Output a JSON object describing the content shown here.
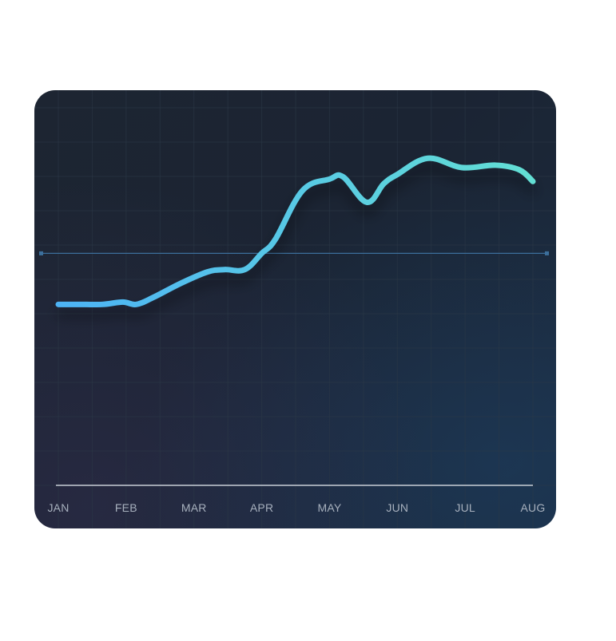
{
  "chart_data": {
    "type": "line",
    "categories": [
      "JAN",
      "FEB",
      "MAR",
      "APR",
      "MAY",
      "JUN",
      "JUL",
      "AUG"
    ],
    "x": [
      0,
      0.3,
      0.65,
      0.95,
      1.15,
      1.4,
      1.8,
      2.2,
      2.45,
      2.75,
      3.0,
      3.2,
      3.6,
      4.0,
      4.2,
      4.55,
      4.8,
      5.0,
      5.45,
      5.95,
      6.45,
      6.8,
      7.0
    ],
    "values": [
      0.78,
      0.78,
      0.78,
      0.79,
      0.78,
      0.81,
      0.87,
      0.92,
      0.93,
      0.93,
      1.0,
      1.06,
      1.27,
      1.32,
      1.33,
      1.22,
      1.3,
      1.34,
      1.41,
      1.37,
      1.38,
      1.36,
      1.31
    ],
    "reference_line": 1.0,
    "xlim": [
      0,
      7
    ],
    "ylim": [
      0,
      1.6
    ],
    "grid": true,
    "colors": {
      "line_start": "#4db3f5",
      "line_end": "#63dfd4",
      "reference": "#3c6f9c",
      "axis": "#c8ced6",
      "grid": "#2c3947"
    }
  }
}
